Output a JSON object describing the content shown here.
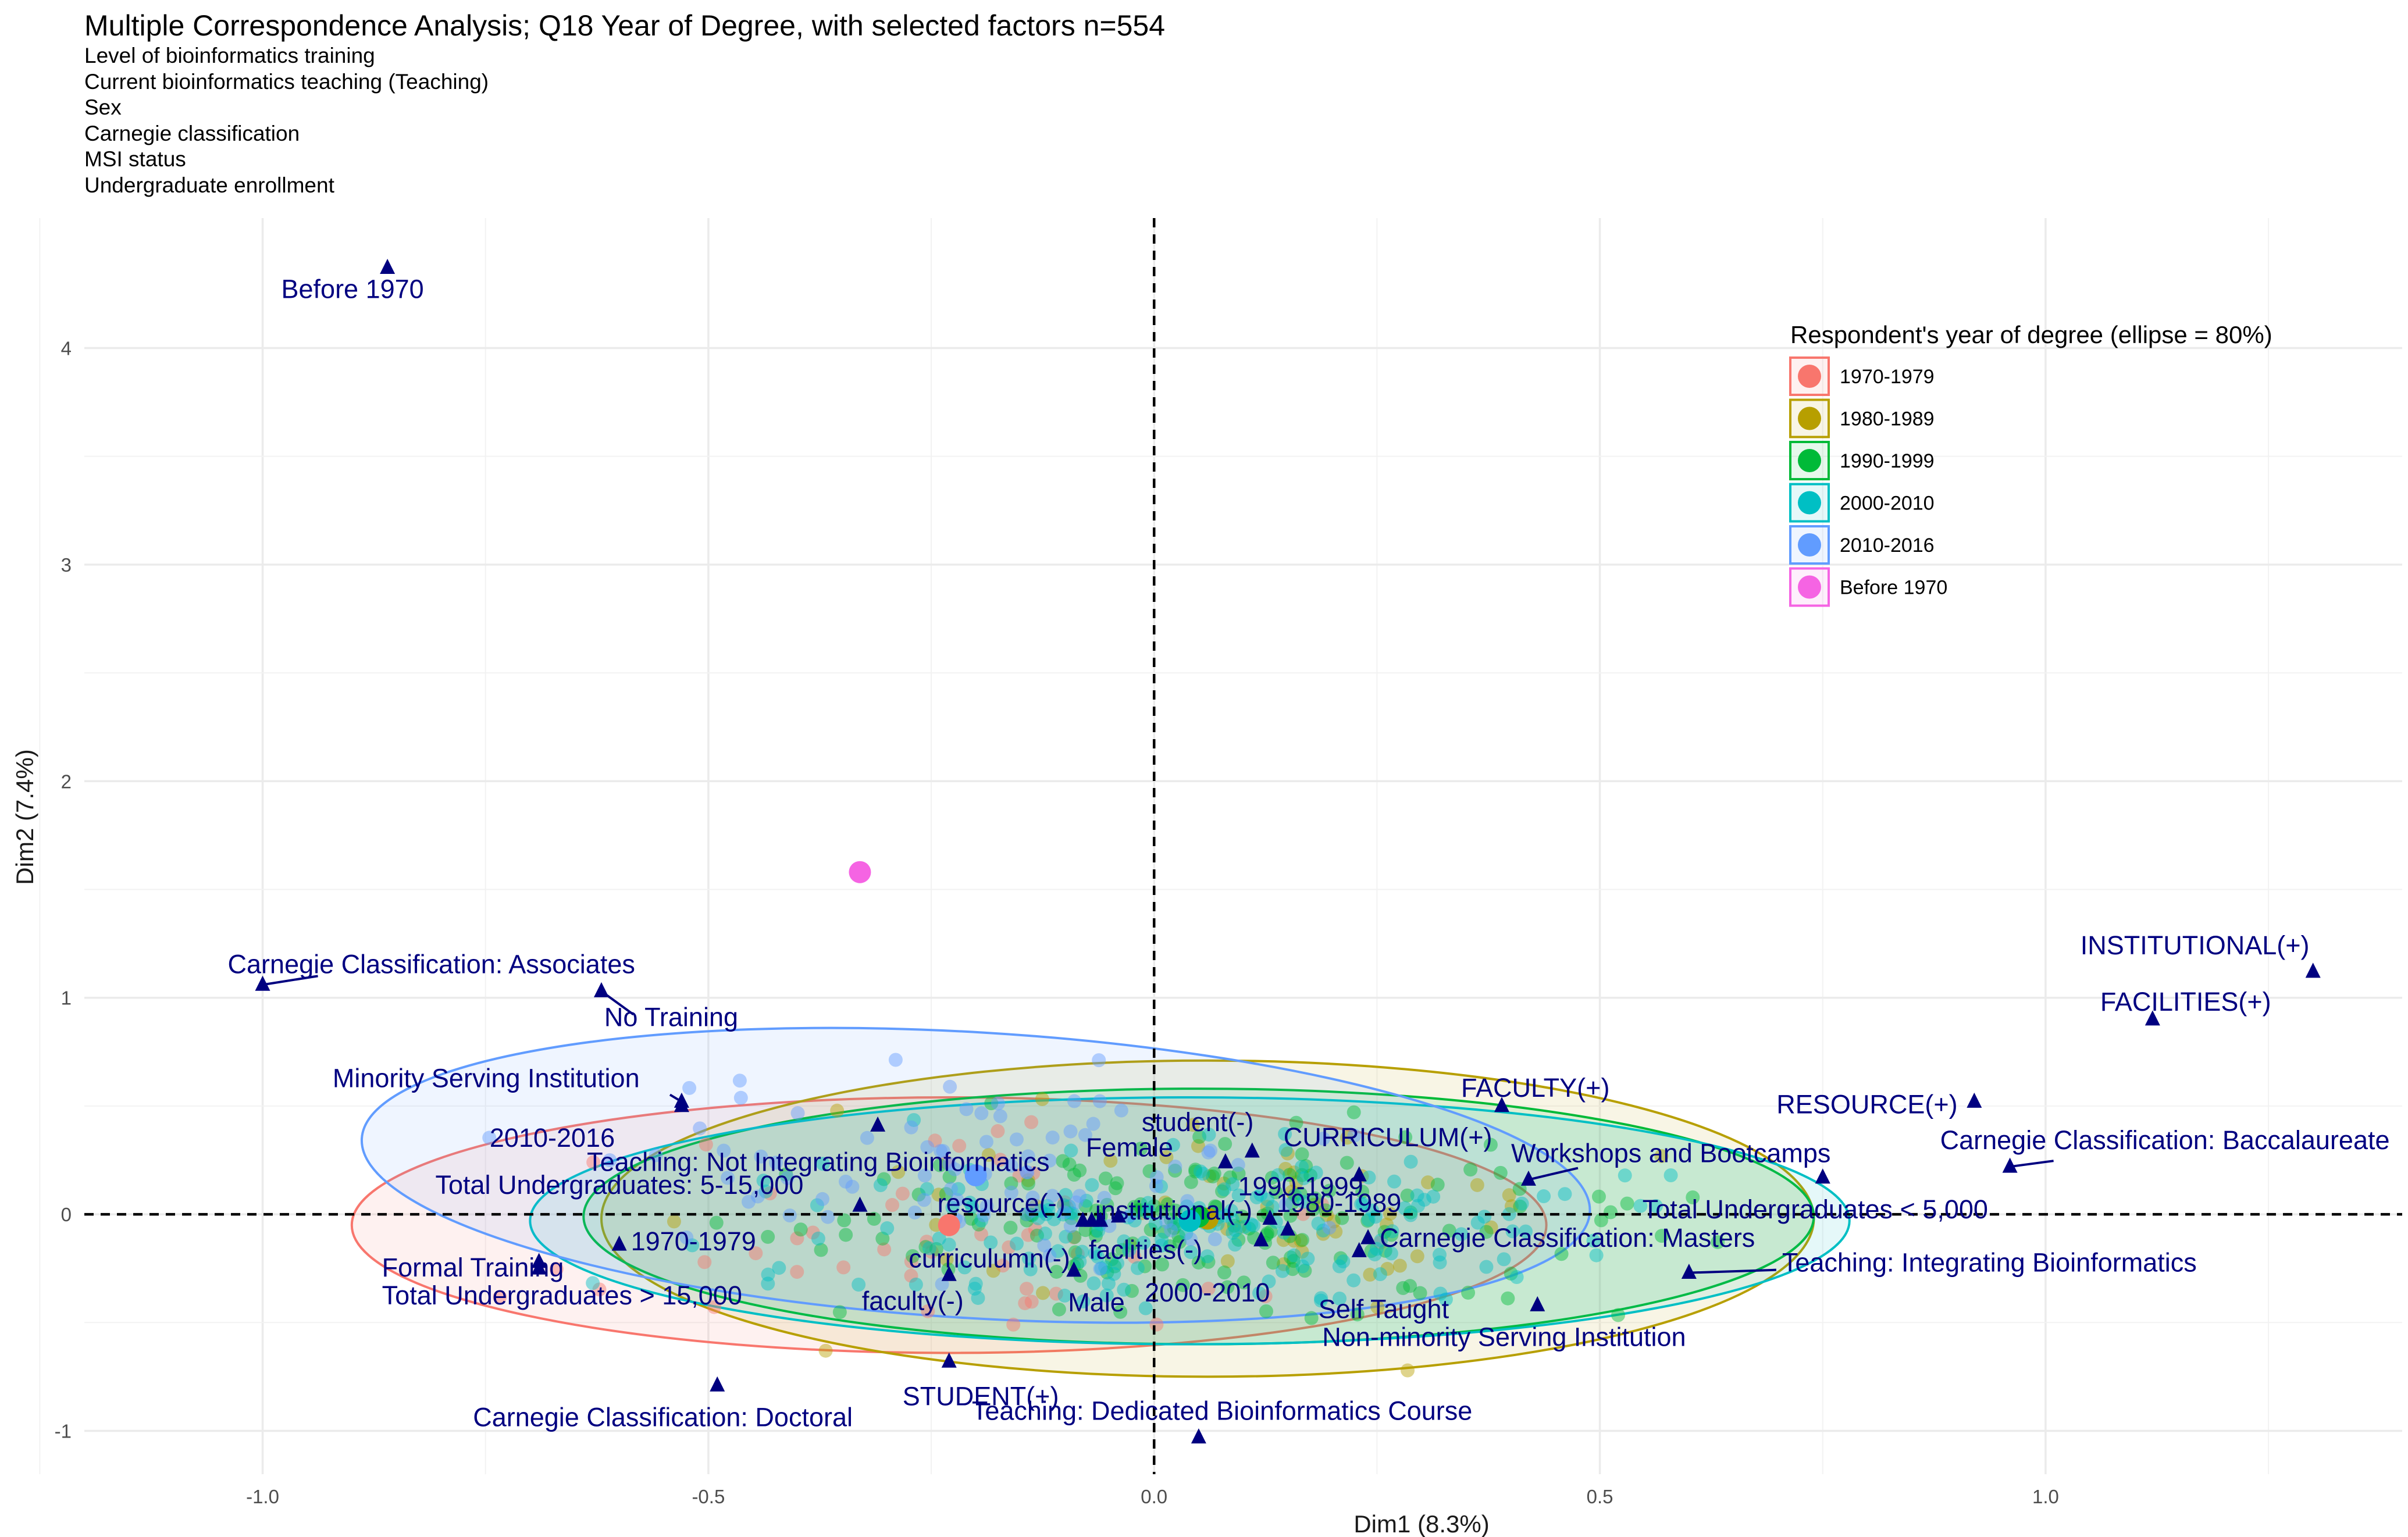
{
  "title": "Multiple Correspondence Analysis; Q18 Year of Degree, with selected factors n=554",
  "subtitle_lines": [
    "Level of bioinformatics training",
    "Current bioinformatics teaching (Teaching)",
    "Sex",
    "Carnegie classification",
    "MSI status",
    "Undergraduate enrollment"
  ],
  "chart_data": {
    "type": "scatter",
    "xlabel": "Dim1 (8.3%)",
    "ylabel": "Dim2 (7.4%)",
    "xlim": [
      -1.2,
      1.4
    ],
    "ylim": [
      -1.2,
      4.6
    ],
    "x_ticks": [
      -1.0,
      -0.5,
      0.0,
      0.5,
      1.0
    ],
    "x_tick_labels": [
      "-1.0",
      "-0.5",
      "0.0",
      "0.5",
      "1.0"
    ],
    "y_ticks": [
      -1,
      0,
      1,
      2,
      3,
      4
    ],
    "y_tick_labels": [
      "-1",
      "0",
      "1",
      "2",
      "3",
      "4"
    ],
    "grid": true,
    "reference_lines": {
      "x": 0,
      "y": 0,
      "style": "dashed"
    },
    "legend": {
      "title": "Respondent's year of degree (ellipse = 80%)",
      "placement": "top-right",
      "entries": [
        {
          "name": "1970-1979",
          "color": "#F8766D"
        },
        {
          "name": "1980-1989",
          "color": "#B79F00"
        },
        {
          "name": "1990-1999",
          "color": "#00BA38"
        },
        {
          "name": "2000-2010",
          "color": "#00BFC4"
        },
        {
          "name": "2010-2016",
          "color": "#619CFF"
        },
        {
          "name": "Before 1970",
          "color": "#F564E3"
        }
      ]
    },
    "group_centroids": [
      {
        "name": "1970-1979",
        "x": -0.23,
        "y": -0.05
      },
      {
        "name": "1980-1989",
        "x": 0.06,
        "y": -0.02
      },
      {
        "name": "1990-1999",
        "x": 0.05,
        "y": -0.01
      },
      {
        "name": "2000-2010",
        "x": 0.04,
        "y": -0.03
      },
      {
        "name": "2010-2016",
        "x": -0.2,
        "y": 0.18
      },
      {
        "name": "Before 1970",
        "x": -0.33,
        "y": 1.58
      }
    ],
    "ellipses": [
      {
        "group": "1970-1979",
        "cx": -0.23,
        "cy": -0.05,
        "rx": 0.67,
        "ry": 0.59,
        "tilt": 0
      },
      {
        "group": "1980-1989",
        "cx": 0.06,
        "cy": -0.02,
        "rx": 0.68,
        "ry": 0.73,
        "tilt": 0
      },
      {
        "group": "1990-1999",
        "cx": 0.05,
        "cy": -0.01,
        "rx": 0.69,
        "ry": 0.59,
        "tilt": 0
      },
      {
        "group": "2000-2010",
        "cx": 0.04,
        "cy": -0.03,
        "rx": 0.74,
        "ry": 0.57,
        "tilt": 0
      },
      {
        "group": "2010-2016",
        "cx": -0.2,
        "cy": 0.18,
        "rx": 0.69,
        "ry": 0.66,
        "tilt": -0.06
      }
    ],
    "individuals": {
      "count_per_group": [
        50,
        60,
        170,
        180,
        90
      ],
      "note_groups": [
        "1970-1979",
        "1980-1989",
        "1990-1999",
        "2000-2010",
        "2010-2016"
      ]
    },
    "categories": [
      {
        "label": "Before 1970",
        "x": -0.86,
        "y": 4.37
      },
      {
        "label": "Carnegie Classification: Associates",
        "x": -1.0,
        "y": 1.06
      },
      {
        "label": "No Training",
        "x": -0.62,
        "y": 1.03
      },
      {
        "label": "Minority Serving Institution",
        "x": -0.53,
        "y": 0.52
      },
      {
        "label": "2010-2016",
        "x": -0.53,
        "y": 0.5
      },
      {
        "label": "Teaching: Not Integrating Bioinformatics",
        "x": -0.31,
        "y": 0.41
      },
      {
        "label": "Total Undergraduates: 5-15,000",
        "x": -0.33,
        "y": 0.04
      },
      {
        "label": "1970-1979",
        "x": -0.6,
        "y": -0.14
      },
      {
        "label": "Formal Training",
        "x": -0.69,
        "y": -0.22
      },
      {
        "label": "Total Undergraduates > 15,000",
        "x": -0.69,
        "y": -0.25
      },
      {
        "label": "Carnegie Classification: Doctoral",
        "x": -0.49,
        "y": -0.79
      },
      {
        "label": "resource(-)",
        "x": -0.08,
        "y": -0.03
      },
      {
        "label": "curriculumn(-)",
        "x": -0.06,
        "y": -0.03
      },
      {
        "label": "faculty(-)",
        "x": -0.23,
        "y": -0.28
      },
      {
        "label": "STUDENT(+)",
        "x": -0.23,
        "y": -0.68
      },
      {
        "label": "Male",
        "x": -0.09,
        "y": -0.26
      },
      {
        "label": "institutional(-)",
        "x": -0.04,
        "y": -0.01
      },
      {
        "label": "faclities(-)",
        "x": -0.07,
        "y": -0.03
      },
      {
        "label": "student(-)",
        "x": 0.11,
        "y": 0.29
      },
      {
        "label": "Female",
        "x": 0.08,
        "y": 0.24
      },
      {
        "label": "CURRICULUM(+)",
        "x": 0.23,
        "y": 0.18
      },
      {
        "label": "1990-1999",
        "x": 0.13,
        "y": -0.02
      },
      {
        "label": "1980-1989",
        "x": 0.15,
        "y": -0.07
      },
      {
        "label": "2000-2010",
        "x": 0.12,
        "y": -0.12
      },
      {
        "label": "Self Taught",
        "x": 0.23,
        "y": -0.17
      },
      {
        "label": "Carnegie Classification: Masters",
        "x": 0.24,
        "y": -0.11
      },
      {
        "label": "Non-minority Serving Institution",
        "x": 0.43,
        "y": -0.42
      },
      {
        "label": "Teaching: Dedicated Bioinformatics Course",
        "x": 0.05,
        "y": -1.03
      },
      {
        "label": "FACULTY(+)",
        "x": 0.39,
        "y": 0.5
      },
      {
        "label": "Workshops and Bootcamps",
        "x": 0.42,
        "y": 0.16
      },
      {
        "label": "RESOURCE(+)",
        "x": 0.92,
        "y": 0.52
      },
      {
        "label": "Total Undergraduates < 5,000",
        "x": 0.75,
        "y": 0.17
      },
      {
        "label": "Carnegie Classification: Baccalaureate",
        "x": 0.96,
        "y": 0.22
      },
      {
        "label": "Teaching: Integrating Bioinformatics",
        "x": 0.6,
        "y": -0.27
      },
      {
        "label": "INSTITUTIONAL(+)",
        "x": 1.3,
        "y": 1.12
      },
      {
        "label": "FACILITIES(+)",
        "x": 1.12,
        "y": 0.9
      }
    ]
  }
}
